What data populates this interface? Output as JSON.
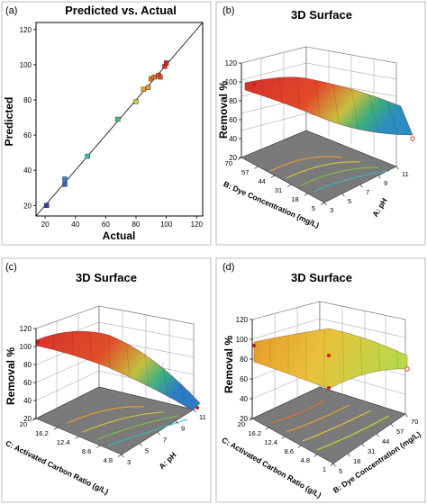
{
  "chart_data": [
    {
      "panel_letter": "(a)",
      "type": "scatter",
      "title": "Predicted vs. Actual",
      "xlabel": "Actual",
      "ylabel": "Predicted",
      "xticks": [
        "20",
        "40",
        "60",
        "80",
        "100",
        "120"
      ],
      "yticks": [
        "20",
        "40",
        "60",
        "80",
        "100",
        "120"
      ],
      "xlim": [
        14,
        124
      ],
      "ylim": [
        14,
        124
      ],
      "fit_line": [
        [
          14,
          14
        ],
        [
          124,
          124
        ]
      ],
      "points": [
        {
          "x": 21,
          "y": 20,
          "color": "#3040a8"
        },
        {
          "x": 33,
          "y": 32,
          "color": "#3d5ec8"
        },
        {
          "x": 33,
          "y": 35,
          "color": "#3f7ad0"
        },
        {
          "x": 48,
          "y": 48,
          "color": "#37b7c3"
        },
        {
          "x": 68,
          "y": 69,
          "color": "#48c070"
        },
        {
          "x": 80,
          "y": 79,
          "color": "#c8d23a"
        },
        {
          "x": 85,
          "y": 86,
          "color": "#e8a030"
        },
        {
          "x": 88,
          "y": 87,
          "color": "#e89a28"
        },
        {
          "x": 90,
          "y": 92,
          "color": "#e07828"
        },
        {
          "x": 92,
          "y": 93,
          "color": "#e46a28"
        },
        {
          "x": 95,
          "y": 94,
          "color": "#e05528"
        },
        {
          "x": 96,
          "y": 93,
          "color": "#d84830"
        },
        {
          "x": 99,
          "y": 99,
          "color": "#d43a2a"
        },
        {
          "x": 100,
          "y": 101,
          "color": "#d02828"
        }
      ]
    },
    {
      "panel_letter": "(b)",
      "type": "surface",
      "title": "3D Surface",
      "zlabel": "Removal %",
      "zticks": [
        "20",
        "40",
        "60",
        "80",
        "100",
        "120"
      ],
      "xlabel": "A: pH",
      "xticks": [
        "3",
        "5",
        "7",
        "9",
        "11"
      ],
      "ylabel": "B: Dye Concentration (mg/L)",
      "yticks": [
        "5",
        "18",
        "31",
        "44",
        "57",
        "70"
      ]
    },
    {
      "panel_letter": "(c)",
      "type": "surface",
      "title": "3D Surface",
      "zlabel": "Removal %",
      "zticks": [
        "20",
        "40",
        "60",
        "80",
        "100",
        "120"
      ],
      "xlabel": "A: pH",
      "xticks": [
        "3",
        "5",
        "7",
        "9",
        "11"
      ],
      "ylabel": "C: Activated Carbon Ratio (g/L)",
      "yticks": [
        "4.8",
        "8.6",
        "12.4",
        "16.2",
        "20"
      ]
    },
    {
      "panel_letter": "(d)",
      "type": "surface",
      "title": "3D Surface",
      "zlabel": "Removal %",
      "zticks": [
        "20",
        "40",
        "60",
        "80",
        "100",
        "120"
      ],
      "xlabel": "B: Dye Concentration (mg/L)",
      "xticks": [
        "5",
        "18",
        "31",
        "44",
        "57",
        "70"
      ],
      "ylabel": "C: Activated Carbon Ratio (g/L)",
      "yticks": [
        "1",
        "4.8",
        "8.6",
        "12.4",
        "16.2",
        "20"
      ]
    }
  ]
}
